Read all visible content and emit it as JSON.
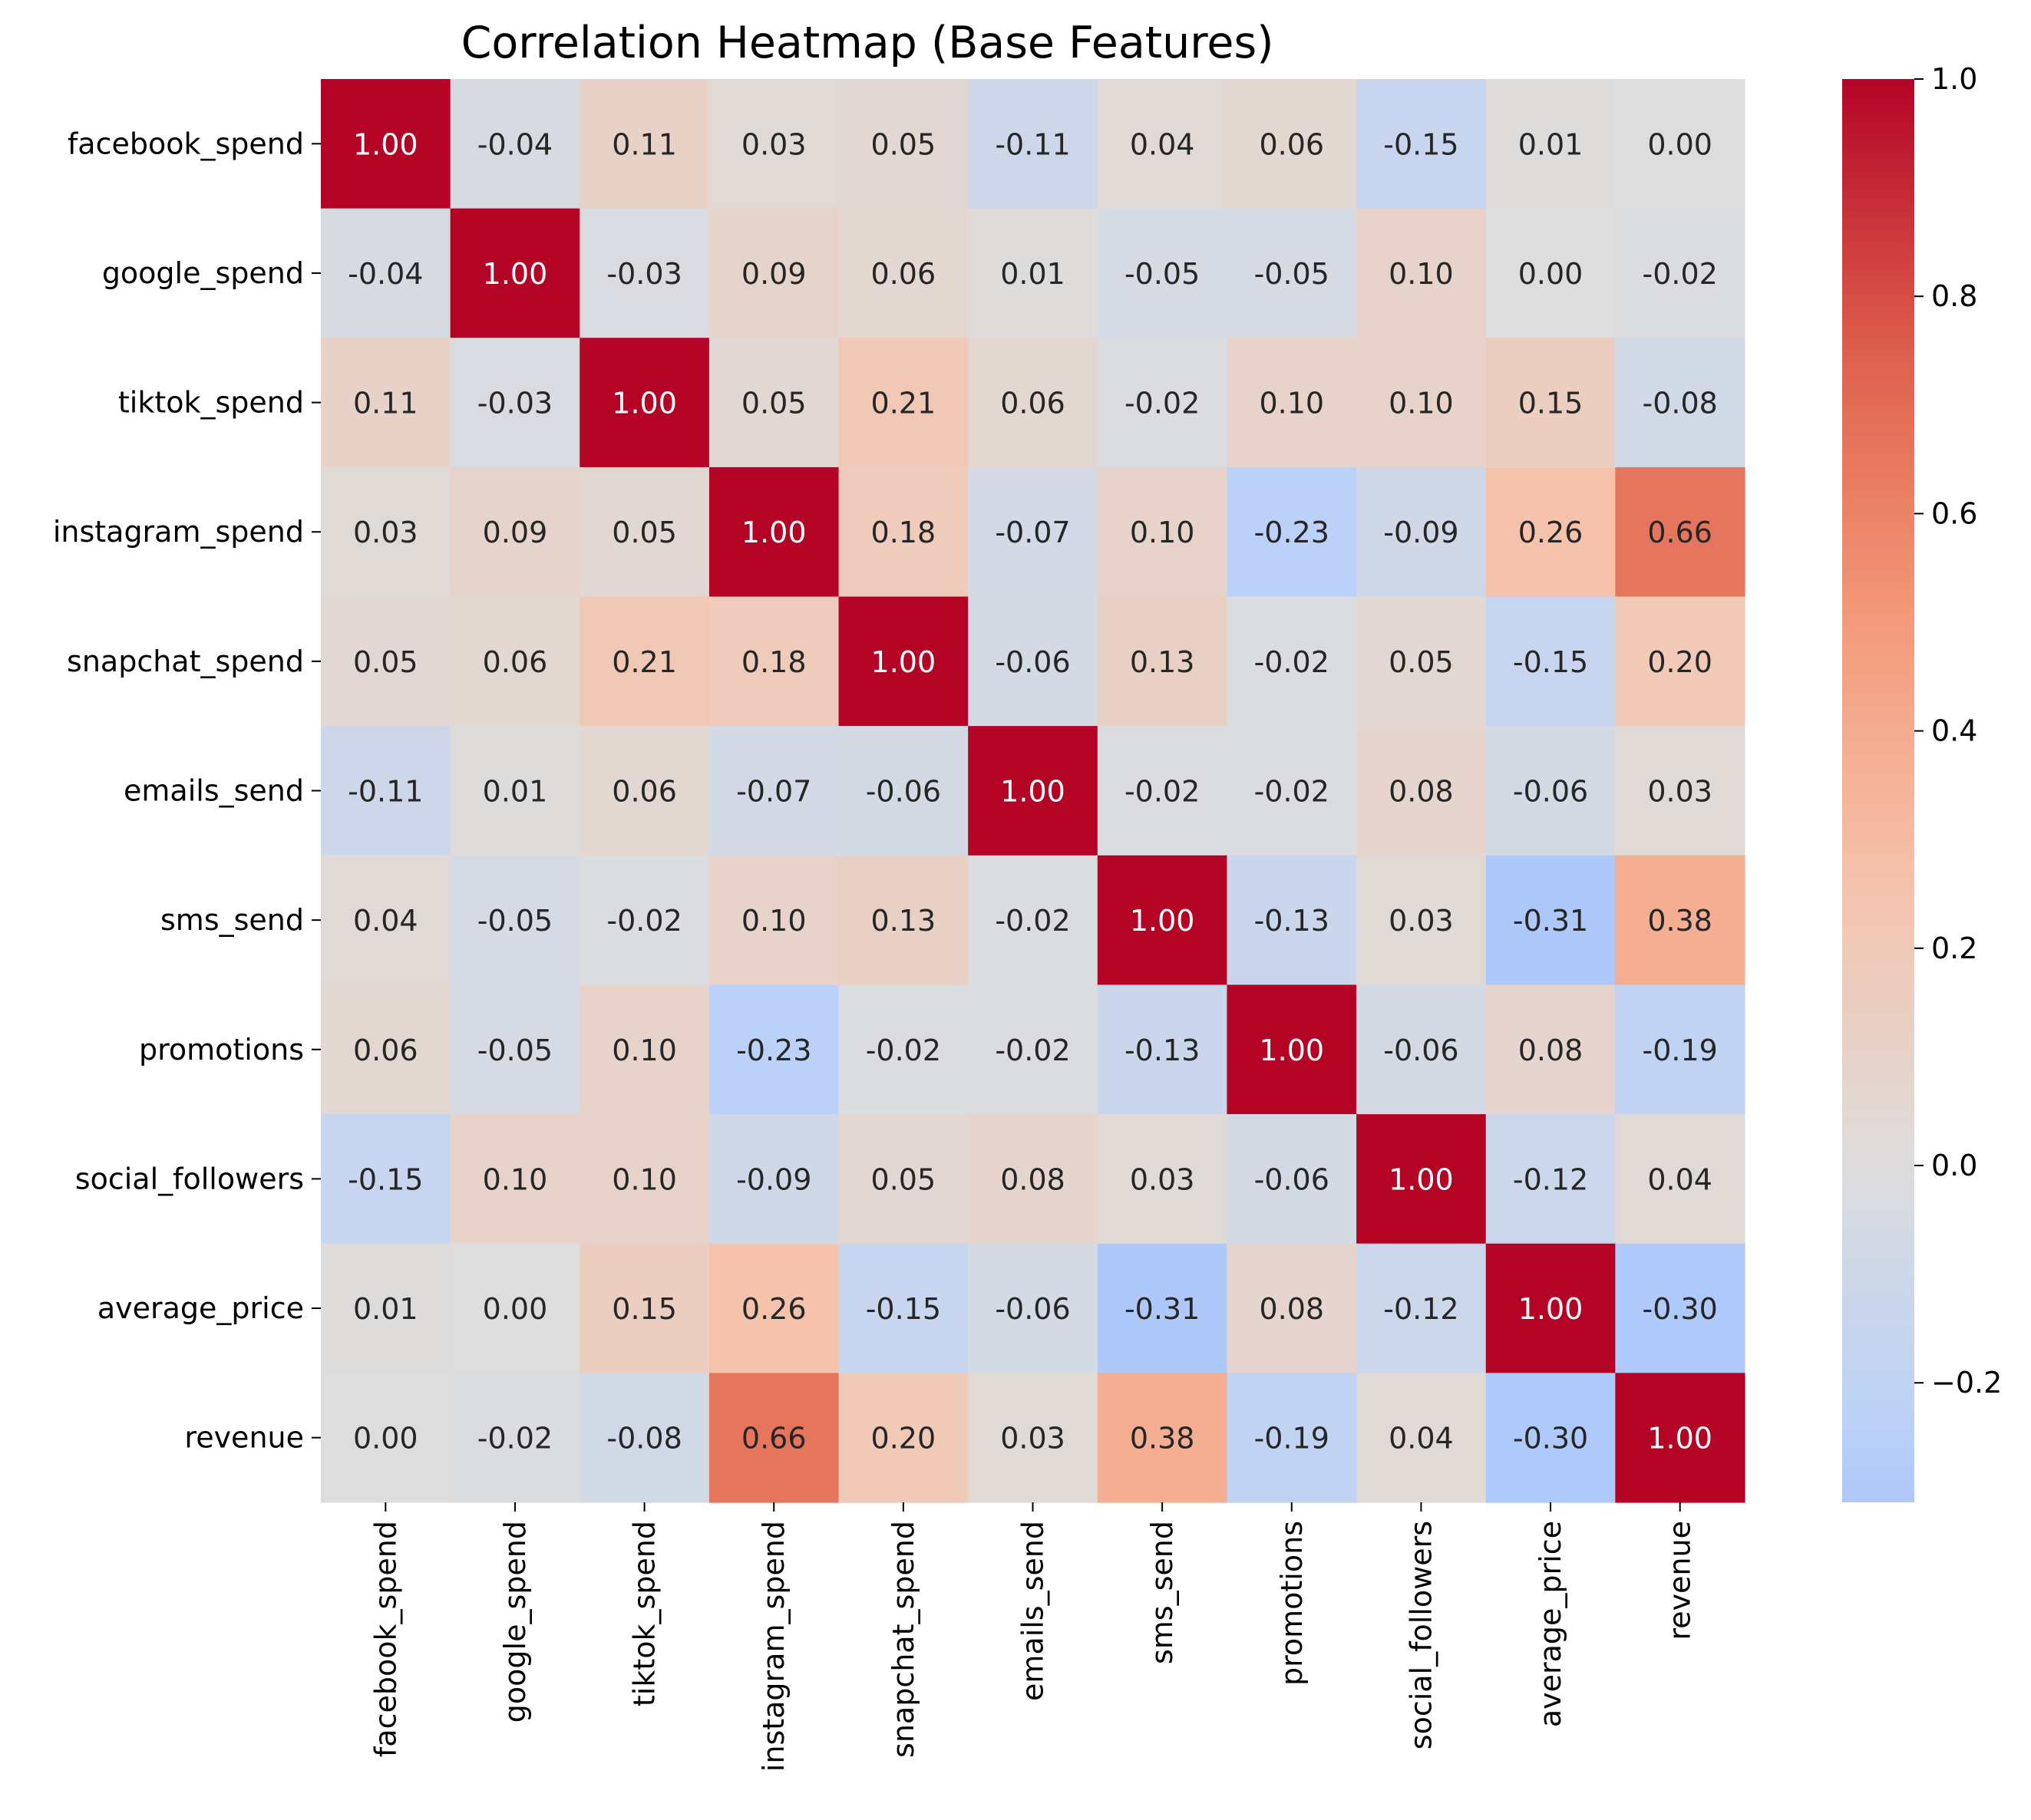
{
  "chart_data": {
    "type": "heatmap",
    "title": "Correlation Heatmap (Base Features)",
    "xlabel": "",
    "ylabel": "",
    "labels": [
      "facebook_spend",
      "google_spend",
      "tiktok_spend",
      "instagram_spend",
      "snapchat_spend",
      "emails_send",
      "sms_send",
      "promotions",
      "social_followers",
      "average_price",
      "revenue"
    ],
    "matrix": [
      [
        1.0,
        -0.04,
        0.11,
        0.03,
        0.05,
        -0.11,
        0.04,
        0.06,
        -0.15,
        0.01,
        0.0
      ],
      [
        -0.04,
        1.0,
        -0.03,
        0.09,
        0.06,
        0.01,
        -0.05,
        -0.05,
        0.1,
        0.0,
        -0.02
      ],
      [
        0.11,
        -0.03,
        1.0,
        0.05,
        0.21,
        0.06,
        -0.02,
        0.1,
        0.1,
        0.15,
        -0.08
      ],
      [
        0.03,
        0.09,
        0.05,
        1.0,
        0.18,
        -0.07,
        0.1,
        -0.23,
        -0.09,
        0.26,
        0.66
      ],
      [
        0.05,
        0.06,
        0.21,
        0.18,
        1.0,
        -0.06,
        0.13,
        -0.02,
        0.05,
        -0.15,
        0.2
      ],
      [
        -0.11,
        0.01,
        0.06,
        -0.07,
        -0.06,
        1.0,
        -0.02,
        -0.02,
        0.08,
        -0.06,
        0.03
      ],
      [
        0.04,
        -0.05,
        -0.02,
        0.1,
        0.13,
        -0.02,
        1.0,
        -0.13,
        0.03,
        -0.31,
        0.38
      ],
      [
        0.06,
        -0.05,
        0.1,
        -0.23,
        -0.02,
        -0.02,
        -0.13,
        1.0,
        -0.06,
        0.08,
        -0.19
      ],
      [
        -0.15,
        0.1,
        0.1,
        -0.09,
        0.05,
        0.08,
        0.03,
        -0.06,
        1.0,
        -0.12,
        0.04
      ],
      [
        0.01,
        0.0,
        0.15,
        0.26,
        -0.15,
        -0.06,
        -0.31,
        0.08,
        -0.12,
        1.0,
        -0.3
      ],
      [
        0.0,
        -0.02,
        -0.08,
        0.66,
        0.2,
        0.03,
        0.38,
        -0.19,
        0.04,
        -0.3,
        1.0
      ]
    ],
    "value_format": "0.00",
    "colormap": "coolwarm",
    "color_center": 0.0,
    "vmin": -0.31,
    "vmax": 1.0,
    "colorbar_ticks": [
      1.0,
      0.8,
      0.6,
      0.4,
      0.2,
      0.0,
      -0.2
    ],
    "colorbar_tick_labels": [
      "1.0",
      "0.8",
      "0.6",
      "0.4",
      "0.2",
      "0.0",
      "−0.2"
    ],
    "grid": false
  }
}
